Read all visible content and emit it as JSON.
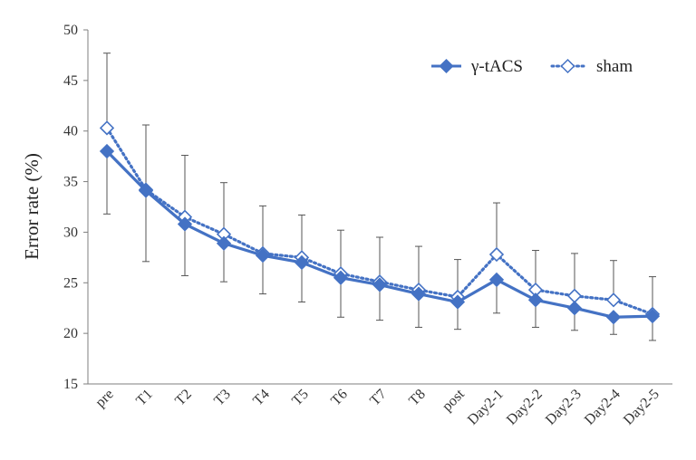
{
  "chart_data": {
    "type": "line",
    "title": "",
    "xlabel": "",
    "ylabel": "Error rate (%)",
    "ylim": [
      15,
      50
    ],
    "yticks": [
      15,
      20,
      25,
      30,
      35,
      40,
      45,
      50
    ],
    "grid": false,
    "legend_position": "top-right",
    "categories": [
      "pre",
      "T1",
      "T2",
      "T3",
      "T4",
      "T5",
      "T6",
      "T7",
      "T8",
      "post",
      "Day2-1",
      "Day2-2",
      "Day2-3",
      "Day2-4",
      "Day2-5"
    ],
    "series": [
      {
        "name": "γ-tACS",
        "style": "solid",
        "marker": "filled-diamond",
        "color": "#4472C4",
        "values": [
          38.0,
          34.1,
          30.8,
          28.9,
          27.7,
          27.0,
          25.5,
          24.8,
          23.9,
          23.1,
          25.3,
          23.3,
          22.5,
          21.6,
          21.7
        ],
        "error": [
          6.2,
          7.0,
          5.1,
          3.8,
          3.8,
          3.9,
          3.9,
          3.5,
          3.3,
          2.7,
          3.3,
          2.7,
          2.2,
          1.7,
          2.4
        ]
      },
      {
        "name": "sham",
        "style": "dotted",
        "marker": "open-diamond",
        "color": "#4472C4",
        "values": [
          40.3,
          34.2,
          31.5,
          29.8,
          27.9,
          27.5,
          25.9,
          25.1,
          24.3,
          23.6,
          27.8,
          24.3,
          23.7,
          23.3,
          21.9
        ],
        "error": [
          7.4,
          6.4,
          6.1,
          5.1,
          4.7,
          4.2,
          4.3,
          4.4,
          4.3,
          3.7,
          5.1,
          3.9,
          4.2,
          3.9,
          3.7
        ]
      }
    ]
  }
}
